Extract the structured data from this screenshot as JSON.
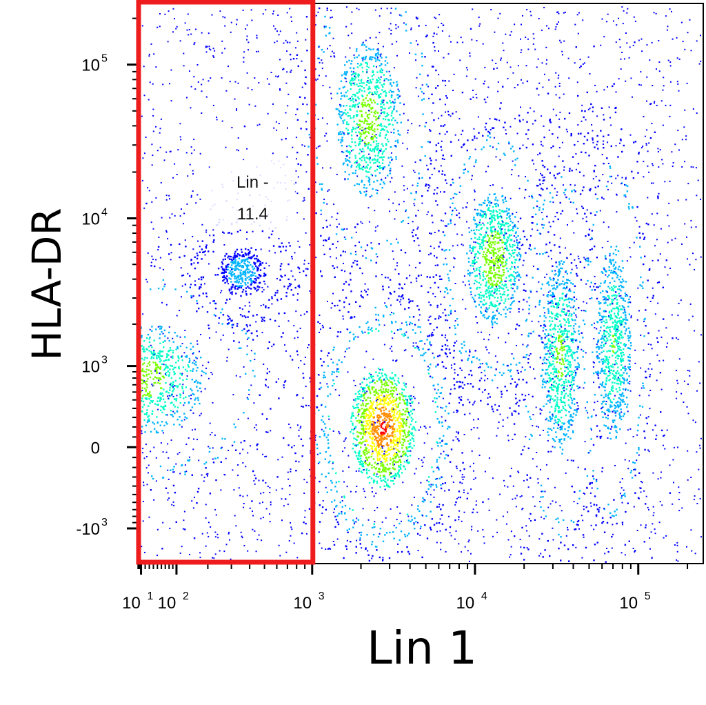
{
  "chart_data": {
    "type": "scatter",
    "subtype": "flow-cytometry-pseudocolor-density",
    "xlabel": "Lin 1",
    "ylabel": "HLA-DR",
    "x_scale": "biexponential",
    "y_scale": "biexponential",
    "x_ticks": [
      {
        "value": 10,
        "base": "10",
        "exp": "1"
      },
      {
        "value": 100,
        "base": "10",
        "exp": "2"
      },
      {
        "value": 1000,
        "base": "10",
        "exp": "3"
      },
      {
        "value": 10000,
        "base": "10",
        "exp": "4"
      },
      {
        "value": 100000,
        "base": "10",
        "exp": "5"
      }
    ],
    "y_ticks": [
      {
        "value": 100000,
        "base": "10",
        "exp": "5"
      },
      {
        "value": 10000,
        "base": "10",
        "exp": "4"
      },
      {
        "value": 1000,
        "base": "10",
        "exp": "3"
      },
      {
        "value": 0,
        "base": "0",
        "exp": ""
      },
      {
        "value": -1000,
        "base": "-10",
        "exp": "3"
      }
    ],
    "xlim": [
      2.5,
      250000
    ],
    "ylim": [
      -1800,
      250000
    ],
    "gate": {
      "name": "Lin -",
      "percent": "11.4",
      "x_range": [
        2.5,
        1000
      ],
      "y_range": [
        -1800,
        250000
      ],
      "color": "#ee1c1c"
    },
    "populations": [
      {
        "cx": 20,
        "cy": 800,
        "weight": 0.55
      },
      {
        "cx": 350,
        "cy": 4500,
        "weight": 0.15
      },
      {
        "cx": 2700,
        "cy": 200,
        "weight": 1.0
      },
      {
        "cx": 2200,
        "cy": 45000,
        "weight": 0.55
      },
      {
        "cx": 13000,
        "cy": 5500,
        "weight": 0.6
      },
      {
        "cx": 33000,
        "cy": 1200,
        "weight": 0.5
      },
      {
        "cx": 70000,
        "cy": 1500,
        "weight": 0.45
      }
    ],
    "density_colors": [
      "#0000ff",
      "#00b4ff",
      "#00ffc8",
      "#78ff00",
      "#ffff00",
      "#ff8c00",
      "#ff0000"
    ]
  }
}
